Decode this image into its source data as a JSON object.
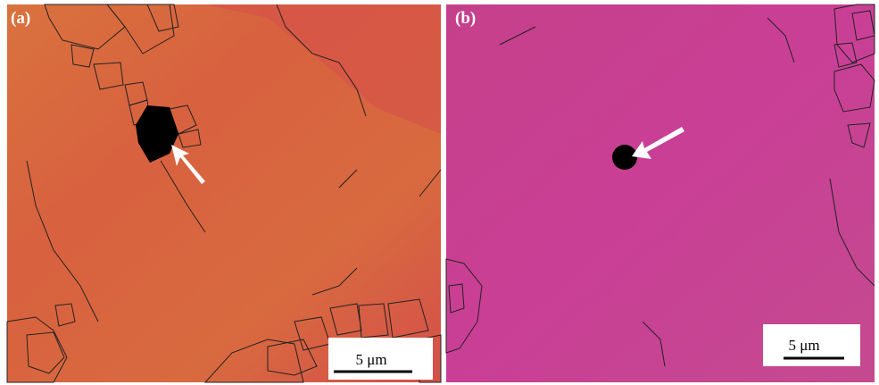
{
  "panels": [
    {
      "label": "(a)",
      "scale_bar": "5 μm"
    },
    {
      "label": "(b)",
      "scale_bar": "5 μm"
    }
  ]
}
